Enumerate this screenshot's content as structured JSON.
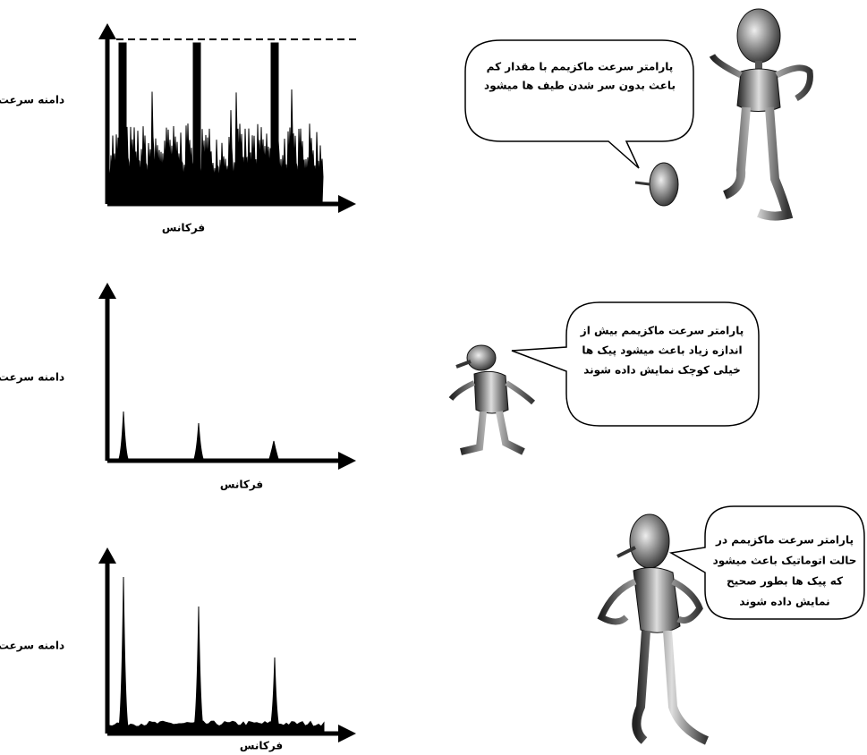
{
  "charts": [
    {
      "y_axis_label": "دامنه سرعت",
      "x_axis_label": "فرکانس"
    },
    {
      "y_axis_label": "دامنه سرعت",
      "x_axis_label": "فرکانس"
    },
    {
      "y_axis_label": "دامنه سرعت",
      "x_axis_label": "فرکانس"
    }
  ],
  "bubbles": [
    {
      "lines": [
        "پارامتر سرعت ماکزیمم با مقدار کم",
        "باعث بدون سر شدن طیف ها میشود"
      ]
    },
    {
      "lines": [
        "پارامتر سرعت ماکزیمم بیش از",
        "اندازه زیاد باعث میشود پیک ها",
        "خیلی کوچک نمایش داده شوند"
      ]
    },
    {
      "lines": [
        "پارامتر سرعت ماکزیمم در",
        "حالت اتوماتیک باعث میشود",
        "که پیک ها بطور صحیح",
        "نمایش داده شوند"
      ]
    }
  ]
}
